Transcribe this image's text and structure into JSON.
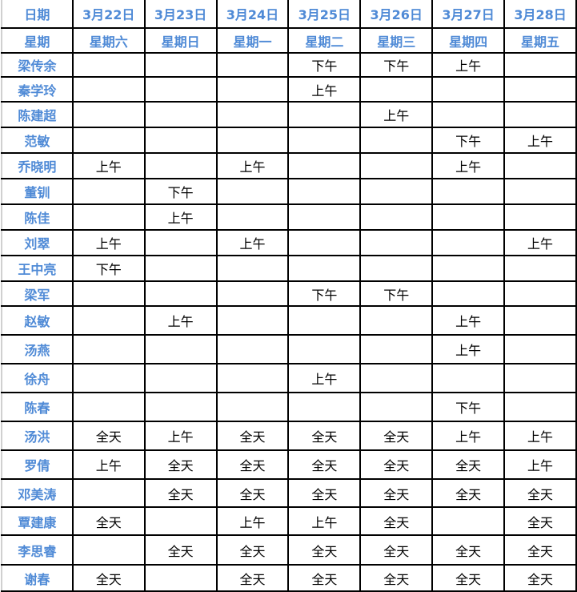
{
  "header": {
    "date_label": "日期",
    "weekday_label": "星期",
    "dates": [
      "3月22日",
      "3月23日",
      "3月24日",
      "3月25日",
      "3月26日",
      "3月27日",
      "3月28日"
    ],
    "weekdays": [
      "星期六",
      "星期日",
      "星期一",
      "星期二",
      "星期三",
      "星期四",
      "星期五"
    ]
  },
  "colors": {
    "header_text": "#4f8ad6",
    "grid": "#000000"
  },
  "rows": [
    {
      "name": "梁传余",
      "cells": [
        "",
        "",
        "",
        "下午",
        "下午",
        "上午",
        ""
      ]
    },
    {
      "name": "秦学玲",
      "cells": [
        "",
        "",
        "",
        "上午",
        "",
        "",
        ""
      ]
    },
    {
      "name": "陈建超",
      "cells": [
        "",
        "",
        "",
        "",
        "上午",
        "",
        ""
      ]
    },
    {
      "name": "范敏",
      "cells": [
        "",
        "",
        "",
        "",
        "",
        "下午",
        "上午"
      ]
    },
    {
      "name": "乔晓明",
      "cells": [
        "上午",
        "",
        "上午",
        "",
        "",
        "上午",
        ""
      ]
    },
    {
      "name": "董钏",
      "cells": [
        "",
        "下午",
        "",
        "",
        "",
        "",
        ""
      ]
    },
    {
      "name": "陈佳",
      "cells": [
        "",
        "上午",
        "",
        "",
        "",
        "",
        ""
      ]
    },
    {
      "name": "刘翠",
      "cells": [
        "上午",
        "",
        "上午",
        "",
        "",
        "",
        "上午"
      ]
    },
    {
      "name": "王中亮",
      "cells": [
        "下午",
        "",
        "",
        "",
        "",
        "",
        ""
      ]
    },
    {
      "name": "梁军",
      "cells": [
        "",
        "",
        "",
        "下午",
        "下午",
        "",
        ""
      ]
    },
    {
      "name": "赵敏",
      "cells": [
        "",
        "上午",
        "",
        "",
        "",
        "上午",
        ""
      ]
    },
    {
      "name": "汤燕",
      "cells": [
        "",
        "",
        "",
        "",
        "",
        "上午",
        ""
      ]
    },
    {
      "name": "徐舟",
      "cells": [
        "",
        "",
        "",
        "上午",
        "",
        "",
        ""
      ]
    },
    {
      "name": "陈春",
      "cells": [
        "",
        "",
        "",
        "",
        "",
        "下午",
        ""
      ]
    },
    {
      "name": "汤洪",
      "cells": [
        "全天",
        "上午",
        "全天",
        "全天",
        "全天",
        "上午",
        "上午"
      ]
    },
    {
      "name": "罗倩",
      "cells": [
        "上午",
        "全天",
        "全天",
        "全天",
        "全天",
        "全天",
        "上午"
      ]
    },
    {
      "name": "邓美涛",
      "cells": [
        "",
        "全天",
        "全天",
        "全天",
        "全天",
        "全天",
        "全天"
      ]
    },
    {
      "name": "覃建康",
      "cells": [
        "全天",
        "",
        "上午",
        "上午",
        "全天",
        "",
        "全天"
      ]
    },
    {
      "name": "李思睿",
      "cells": [
        "",
        "全天",
        "全天",
        "全天",
        "全天",
        "全天",
        "全天"
      ]
    },
    {
      "name": "谢春",
      "cells": [
        "全天",
        "",
        "全天",
        "全天",
        "全天",
        "全天",
        "全天"
      ]
    }
  ]
}
